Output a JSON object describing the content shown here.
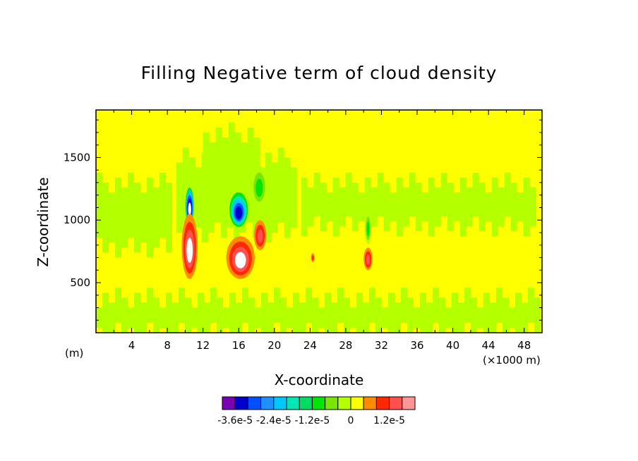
{
  "chart_data": {
    "type": "heatmap",
    "title": "Filling Negative term of cloud density",
    "xlabel": "X-coordinate",
    "ylabel": "Z-coordinate",
    "x_unit_left": "(m)",
    "x_unit_right": "(×1000 m)",
    "xlim": [
      0,
      50
    ],
    "ylim": [
      100,
      1880
    ],
    "x_ticks": [
      4,
      8,
      12,
      16,
      20,
      24,
      28,
      32,
      36,
      40,
      44,
      48
    ],
    "y_ticks": [
      500,
      1000,
      1500
    ],
    "colorbar": {
      "colors": [
        "#7b00b4",
        "#0000cd",
        "#0050ff",
        "#1e90ff",
        "#00c8ff",
        "#00e6b4",
        "#00dc64",
        "#00e600",
        "#78e600",
        "#b4ff00",
        "#ffff00",
        "#ff8c00",
        "#ff2800",
        "#ff5050",
        "#ff9696"
      ],
      "labels": [
        "-3.6e-5",
        "-2.4e-5",
        "-1.2e-5",
        "0",
        "1.2e-5"
      ],
      "label_boundaries": [
        1,
        4,
        7,
        10,
        13
      ]
    },
    "background_color": "#ffff00",
    "features": [
      {
        "desc": "negative core",
        "x": 10.5,
        "z": 1120,
        "rx": 0.55,
        "rz": 170,
        "colors": [
          "#b4ff00",
          "#00dc64",
          "#00c8ff",
          "#0050ff",
          "#0000cd",
          "#ffffff"
        ]
      },
      {
        "desc": "negative core",
        "x": 16.0,
        "z": 1090,
        "rx": 1.2,
        "rz": 160,
        "colors": [
          "#b4ff00",
          "#00e600",
          "#00e6b4",
          "#00c8ff",
          "#0050ff",
          "#0000cd"
        ]
      },
      {
        "desc": "negative patch",
        "x": 18.3,
        "z": 1270,
        "rx": 0.9,
        "rz": 160,
        "colors": [
          "#b4ff00",
          "#78e600",
          "#00e600"
        ]
      },
      {
        "desc": "negative patch",
        "x": 30.5,
        "z": 940,
        "rx": 0.35,
        "rz": 130,
        "colors": [
          "#b4ff00",
          "#78e600",
          "#00e600"
        ]
      },
      {
        "desc": "positive core",
        "x": 10.5,
        "z": 790,
        "rx": 0.9,
        "rz": 260,
        "colors": [
          "#ff8c00",
          "#ff2800",
          "#ff5050",
          "#ffffff"
        ]
      },
      {
        "desc": "positive core",
        "x": 16.2,
        "z": 700,
        "rx": 1.6,
        "rz": 170,
        "colors": [
          "#ff8c00",
          "#ff2800",
          "#ff5050",
          "#ffffff"
        ]
      },
      {
        "desc": "positive patch",
        "x": 18.4,
        "z": 880,
        "rx": 0.7,
        "rz": 120,
        "colors": [
          "#ff8c00",
          "#ff2800",
          "#ff5050"
        ]
      },
      {
        "desc": "positive patch",
        "x": 30.5,
        "z": 690,
        "rx": 0.5,
        "rz": 90,
        "colors": [
          "#ff8c00",
          "#ff2800",
          "#ff5050"
        ]
      },
      {
        "desc": "positive speck",
        "x": 24.3,
        "z": 700,
        "rx": 0.2,
        "rz": 35,
        "colors": [
          "#ff8c00",
          "#ff2800"
        ]
      }
    ],
    "green_bands": [
      {
        "x0": 0,
        "x1": 9,
        "z0": 780,
        "z1": 1300
      },
      {
        "x0": 9,
        "x1": 23,
        "z0": 900,
        "z1": 1500
      },
      {
        "x0": 23,
        "x1": 50,
        "z0": 950,
        "z1": 1300
      },
      {
        "x0": 0,
        "x1": 50,
        "z0": 100,
        "z1": 380
      },
      {
        "x0": 12,
        "x1": 19,
        "z0": 1300,
        "z1": 1700
      }
    ]
  }
}
